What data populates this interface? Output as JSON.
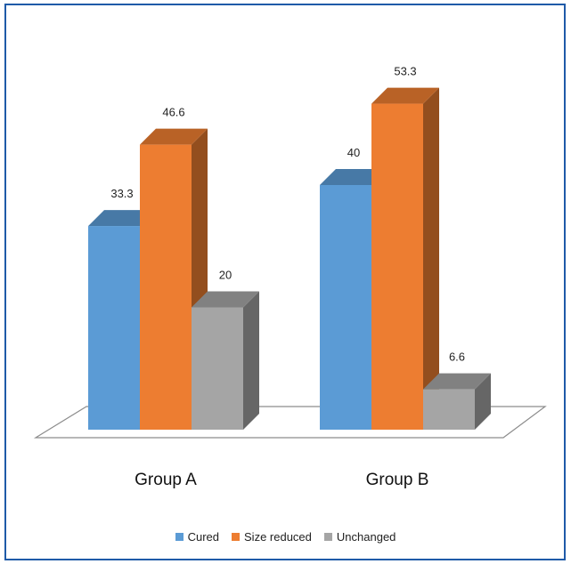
{
  "chart_data": {
    "type": "bar",
    "categories": [
      "Group A",
      "Group B"
    ],
    "series": [
      {
        "name": "Cured",
        "values": [
          33.3,
          40
        ],
        "color": "#5b9bd5"
      },
      {
        "name": "Size reduced",
        "values": [
          46.6,
          53.3
        ],
        "color": "#ed7d31"
      },
      {
        "name": "Unchanged",
        "values": [
          20,
          6.6
        ],
        "color": "#a5a5a5"
      }
    ],
    "data_labels": [
      [
        "33.3",
        "40"
      ],
      [
        "46.6",
        "53.3"
      ],
      [
        "20",
        "6.6"
      ]
    ],
    "legend_position": "bottom",
    "style": "3d-clustered-column",
    "grid": false,
    "title": "",
    "xlabel": "",
    "ylabel": ""
  }
}
